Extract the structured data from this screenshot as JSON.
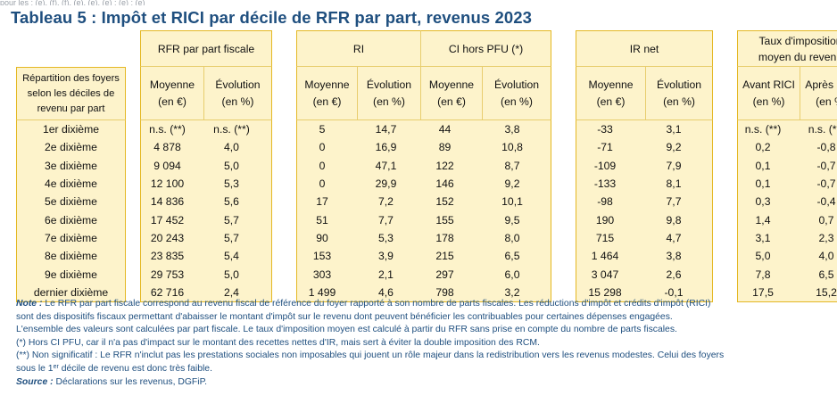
{
  "top_text": "pour les ; (e), (f), (f), (e), (e), (e) ; (e) ; (e)",
  "title": "Tableau 5 : Impôt et RICI par décile de RFR par part, revenus 2023",
  "table": {
    "group_headers": {
      "rfr": "RFR par part fiscale",
      "ri": "RI",
      "ci": "CI hors PFU (*)",
      "ir": "IR net",
      "taux_line1": "Taux d'imposition",
      "taux_line2": "moyen du revenu"
    },
    "row_header": {
      "line1": "Répartition des foyers",
      "line2": "selon les déciles de",
      "line3": "revenu par part"
    },
    "sub_headers": {
      "moyenne_1": "Moyenne",
      "moyenne_2": "(en €)",
      "evolution_1": "Évolution",
      "evolution_2": "(en %)",
      "avant_1": "Avant RICI",
      "avant_2": "(en %)",
      "apres_1": "Après RICI",
      "apres_2": "(en %)"
    },
    "rows": [
      {
        "label": "1er dixième",
        "rfr_moy": "n.s. (**)",
        "rfr_evo": "n.s. (**)",
        "ri_moy": "5",
        "ri_evo": "14,7",
        "ci_moy": "44",
        "ci_evo": "3,8",
        "ir_moy": "-33",
        "ir_evo": "3,1",
        "avant": "n.s. (**)",
        "apres": "n.s. (**)"
      },
      {
        "label": "2e dixième",
        "rfr_moy": "4 878",
        "rfr_evo": "4,0",
        "ri_moy": "0",
        "ri_evo": "16,9",
        "ci_moy": "89",
        "ci_evo": "10,8",
        "ir_moy": "-71",
        "ir_evo": "9,2",
        "avant": "0,2",
        "apres": "-0,8"
      },
      {
        "label": "3e dixième",
        "rfr_moy": "9 094",
        "rfr_evo": "5,0",
        "ri_moy": "0",
        "ri_evo": "47,1",
        "ci_moy": "122",
        "ci_evo": "8,7",
        "ir_moy": "-109",
        "ir_evo": "7,9",
        "avant": "0,1",
        "apres": "-0,7"
      },
      {
        "label": "4e dixième",
        "rfr_moy": "12 100",
        "rfr_evo": "5,3",
        "ri_moy": "0",
        "ri_evo": "29,9",
        "ci_moy": "146",
        "ci_evo": "9,2",
        "ir_moy": "-133",
        "ir_evo": "8,1",
        "avant": "0,1",
        "apres": "-0,7"
      },
      {
        "label": "5e dixième",
        "rfr_moy": "14 836",
        "rfr_evo": "5,6",
        "ri_moy": "17",
        "ri_evo": "7,2",
        "ci_moy": "152",
        "ci_evo": "10,1",
        "ir_moy": "-98",
        "ir_evo": "7,7",
        "avant": "0,3",
        "apres": "-0,4"
      },
      {
        "label": "6e dixième",
        "rfr_moy": "17 452",
        "rfr_evo": "5,7",
        "ri_moy": "51",
        "ri_evo": "7,7",
        "ci_moy": "155",
        "ci_evo": "9,5",
        "ir_moy": "190",
        "ir_evo": "9,8",
        "avant": "1,4",
        "apres": "0,7"
      },
      {
        "label": "7e dixième",
        "rfr_moy": "20 243",
        "rfr_evo": "5,7",
        "ri_moy": "90",
        "ri_evo": "5,3",
        "ci_moy": "178",
        "ci_evo": "8,0",
        "ir_moy": "715",
        "ir_evo": "4,7",
        "avant": "3,1",
        "apres": "2,3"
      },
      {
        "label": "8e dixième",
        "rfr_moy": "23 835",
        "rfr_evo": "5,4",
        "ri_moy": "153",
        "ri_evo": "3,9",
        "ci_moy": "215",
        "ci_evo": "6,5",
        "ir_moy": "1 464",
        "ir_evo": "3,8",
        "avant": "5,0",
        "apres": "4,0"
      },
      {
        "label": "9e dixième",
        "rfr_moy": "29 753",
        "rfr_evo": "5,0",
        "ri_moy": "303",
        "ri_evo": "2,1",
        "ci_moy": "297",
        "ci_evo": "6,0",
        "ir_moy": "3 047",
        "ir_evo": "2,6",
        "avant": "7,8",
        "apres": "6,5"
      },
      {
        "label": "dernier dixième",
        "rfr_moy": "62 716",
        "rfr_evo": "2,4",
        "ri_moy": "1 499",
        "ri_evo": "4,6",
        "ci_moy": "798",
        "ci_evo": "3,2",
        "ir_moy": "15 298",
        "ir_evo": "-0,1",
        "avant": "17,5",
        "apres": "15,2"
      }
    ]
  },
  "notes": {
    "note_label": "Note :",
    "note_1": "Le RFR par part fiscale correspond au revenu fiscal de référence du foyer rapporté à son nombre de parts fiscales. Les réductions d'impôt et crédits d'impôt (RICI)",
    "note_2": "sont des dispositifs fiscaux permettant d'abaisser le montant d'impôt sur le revenu dont peuvent bénéficier les contribuables pour certaines dépenses engagées.",
    "note_3": "L'ensemble des valeurs sont calculées par part fiscale. Le taux d'imposition moyen est calculé à partir du RFR sans prise en compte du nombre de parts fiscales.",
    "star_1": "(*) Hors CI PFU, car il n'a pas d'impact sur le montant des recettes nettes d'IR, mais sert à éviter la double imposition des RCM.",
    "star_2a": "(**) Non significatif : Le RFR n'inclut pas les prestations sociales non imposables qui jouent un rôle majeur dans la redistribution vers les revenus modestes. Celui des foyers",
    "star_2b_pre": "sous le 1",
    "star_2b_sup": "er",
    "star_2b_post": " décile de revenu est donc très faible.",
    "source_label": "Source :",
    "source_text": "Déclarations sur les revenus, DGFiP."
  },
  "colors": {
    "title": "#1f4f7f",
    "panel": "#fdf3cb",
    "border": "#e4b824",
    "notes": "#1f4f7f"
  }
}
